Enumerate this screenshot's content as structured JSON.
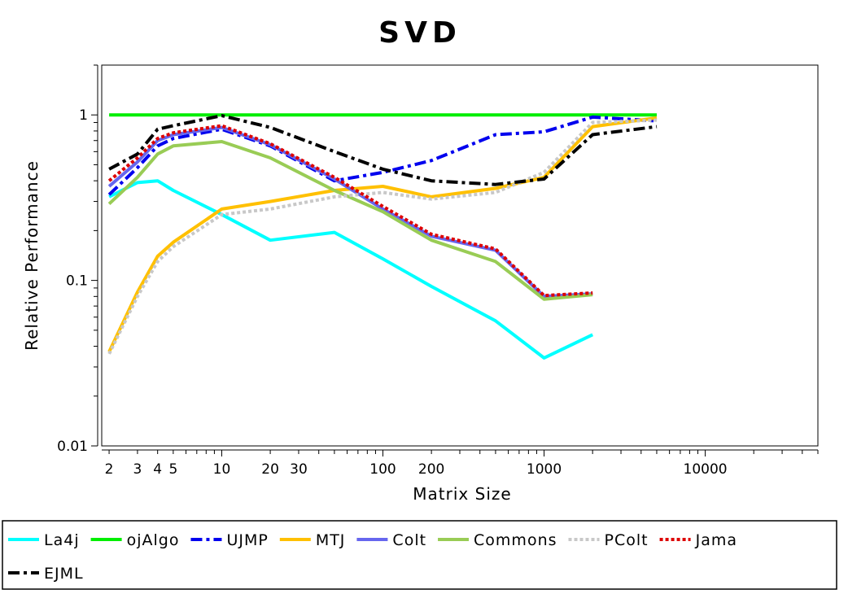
{
  "chart_data": {
    "type": "line",
    "title": "SVD",
    "xlabel": "Matrix Size",
    "ylabel": "Relative Performance",
    "x_scale": "log",
    "y_scale": "log",
    "xlim": [
      1.8,
      50000
    ],
    "ylim": [
      0.01,
      2.0
    ],
    "grid": false,
    "legend_position": "bottom",
    "x_tick_labels": [
      {
        "value": 2,
        "label": "2"
      },
      {
        "value": 3,
        "label": "3"
      },
      {
        "value": 4,
        "label": "4"
      },
      {
        "value": 5,
        "label": "5"
      },
      {
        "value": 10,
        "label": "10"
      },
      {
        "value": 20,
        "label": "20"
      },
      {
        "value": 30,
        "label": "30"
      },
      {
        "value": 100,
        "label": "100"
      },
      {
        "value": 200,
        "label": "200"
      },
      {
        "value": 1000,
        "label": "1000"
      },
      {
        "value": 10000,
        "label": "10000"
      }
    ],
    "y_tick_labels": [
      {
        "value": 1,
        "label": "1"
      },
      {
        "value": 0.1,
        "label": "0.1"
      },
      {
        "value": 0.01,
        "label": "0.01"
      }
    ],
    "series": [
      {
        "name": "La4j",
        "color": "#00ffff",
        "dash": "solid",
        "x": [
          2,
          3,
          4,
          5,
          10,
          20,
          50,
          100,
          200,
          500,
          1000,
          2000
        ],
        "y": [
          0.32,
          0.39,
          0.4,
          0.35,
          0.25,
          0.175,
          0.195,
          0.135,
          0.092,
          0.057,
          0.034,
          0.047
        ]
      },
      {
        "name": "ojAlgo",
        "color": "#00ee00",
        "dash": "solid",
        "x": [
          2,
          3,
          4,
          5,
          10,
          20,
          50,
          100,
          200,
          500,
          1000,
          2000,
          5000
        ],
        "y": [
          1,
          1,
          1,
          1,
          1,
          1,
          1,
          1,
          1,
          1,
          1,
          1,
          1
        ]
      },
      {
        "name": "UJMP",
        "color": "#0000ee",
        "dash": "dashdot",
        "x": [
          2,
          3,
          4,
          5,
          10,
          20,
          50,
          100,
          200,
          500,
          1000,
          2000,
          5000
        ],
        "y": [
          0.33,
          0.48,
          0.65,
          0.72,
          0.82,
          0.65,
          0.4,
          0.45,
          0.53,
          0.76,
          0.79,
          0.97,
          0.92
        ]
      },
      {
        "name": "MTJ",
        "color": "#ffc000",
        "dash": "solid",
        "x": [
          2,
          3,
          4,
          5,
          10,
          20,
          50,
          100,
          200,
          500,
          1000,
          2000,
          5000
        ],
        "y": [
          0.037,
          0.085,
          0.14,
          0.17,
          0.27,
          0.3,
          0.35,
          0.37,
          0.32,
          0.36,
          0.42,
          0.85,
          0.96
        ]
      },
      {
        "name": "Colt",
        "color": "#6666ee",
        "dash": "solid",
        "x": [
          2,
          3,
          4,
          5,
          10,
          20,
          50,
          100,
          200,
          500,
          1000,
          2000
        ],
        "y": [
          0.37,
          0.52,
          0.7,
          0.76,
          0.84,
          0.66,
          0.41,
          0.27,
          0.185,
          0.152,
          0.08,
          0.083
        ]
      },
      {
        "name": "Commons",
        "color": "#99cc55",
        "dash": "solid",
        "x": [
          2,
          3,
          4,
          5,
          10,
          20,
          50,
          100,
          200,
          500,
          1000,
          2000
        ],
        "y": [
          0.29,
          0.42,
          0.58,
          0.65,
          0.69,
          0.55,
          0.35,
          0.26,
          0.175,
          0.13,
          0.077,
          0.082
        ]
      },
      {
        "name": "PColt",
        "color": "#c8c8c8",
        "dash": "dot",
        "x": [
          2,
          3,
          4,
          5,
          10,
          20,
          50,
          100,
          200,
          500,
          1000,
          2000,
          5000
        ],
        "y": [
          0.036,
          0.08,
          0.13,
          0.16,
          0.25,
          0.27,
          0.32,
          0.34,
          0.31,
          0.34,
          0.45,
          0.9,
          0.93
        ]
      },
      {
        "name": "Jama",
        "color": "#dd0000",
        "dash": "dot",
        "x": [
          2,
          3,
          4,
          5,
          10,
          20,
          50,
          100,
          200,
          500,
          1000,
          2000
        ],
        "y": [
          0.4,
          0.55,
          0.72,
          0.78,
          0.86,
          0.67,
          0.42,
          0.28,
          0.19,
          0.155,
          0.081,
          0.084
        ]
      },
      {
        "name": "EJML",
        "color": "#000000",
        "dash": "dashdot",
        "x": [
          2,
          3,
          4,
          5,
          10,
          20,
          50,
          100,
          200,
          500,
          1000,
          2000,
          5000
        ],
        "y": [
          0.47,
          0.58,
          0.82,
          0.86,
          0.99,
          0.84,
          0.6,
          0.47,
          0.4,
          0.38,
          0.41,
          0.76,
          0.85
        ]
      }
    ]
  }
}
